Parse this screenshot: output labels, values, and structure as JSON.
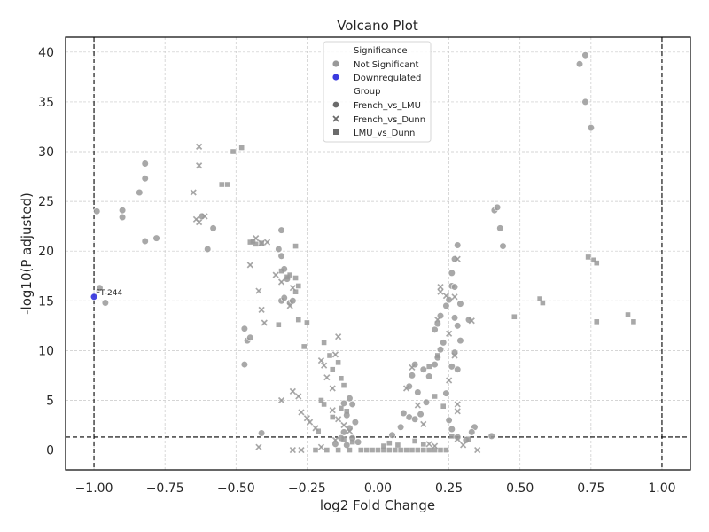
{
  "chart_data": {
    "type": "scatter",
    "title": "Volcano Plot",
    "xlabel": "log2 Fold Change",
    "ylabel": "-log10(P adjusted)",
    "xlim": [
      -1.1,
      1.1
    ],
    "ylim": [
      -2,
      41.5
    ],
    "xticks": [
      -1.0,
      -0.75,
      -0.5,
      -0.25,
      0.0,
      0.25,
      0.5,
      0.75,
      1.0
    ],
    "xtick_labels": [
      "−1.00",
      "−0.75",
      "−0.50",
      "−0.25",
      "0.00",
      "0.25",
      "0.50",
      "0.75",
      "1.00"
    ],
    "yticks": [
      0,
      5,
      10,
      15,
      20,
      25,
      30,
      35,
      40
    ],
    "ytick_labels": [
      "0",
      "5",
      "10",
      "15",
      "20",
      "25",
      "30",
      "35",
      "40"
    ],
    "grid": true,
    "thresholds": {
      "fold_change": [
        -1.0,
        1.0
      ],
      "neg_log10_p": 1.3
    },
    "legend": {
      "placement": "top-center",
      "hue_title": "Significance",
      "hue_entries": [
        {
          "label": "Not Significant",
          "color": "#999999"
        },
        {
          "label": "Downregulated",
          "color": "#3b3bdf"
        }
      ],
      "style_title": "Group",
      "style_entries": [
        {
          "label": "French_vs_LMU",
          "marker": "circle"
        },
        {
          "label": "French_vs_Dunn",
          "marker": "x"
        },
        {
          "label": "LMU_vs_Dunn",
          "marker": "square"
        }
      ]
    },
    "annotations": [
      {
        "text": "FT-244",
        "x": -1.0,
        "y": 15.4
      }
    ],
    "colors": {
      "not_significant": "#999999",
      "downregulated": "#3b3bdf",
      "legend_marker": "#6b6b6b"
    },
    "series": [
      {
        "name": "French_vs_LMU",
        "marker": "circle",
        "points": [
          [
            -0.99,
            24.0
          ],
          [
            -0.98,
            16.3
          ],
          [
            -0.96,
            14.8
          ],
          [
            -0.9,
            24.1
          ],
          [
            -0.9,
            23.4
          ],
          [
            -0.84,
            25.9
          ],
          [
            -0.82,
            28.8
          ],
          [
            -0.82,
            27.3
          ],
          [
            -0.82,
            21.0
          ],
          [
            -0.78,
            21.3
          ],
          [
            -0.62,
            23.5
          ],
          [
            -0.6,
            20.2
          ],
          [
            -0.58,
            22.3
          ],
          [
            -0.47,
            12.2
          ],
          [
            -0.46,
            11.0
          ],
          [
            -0.45,
            11.3
          ],
          [
            -0.47,
            8.6
          ],
          [
            -0.41,
            1.7
          ],
          [
            -0.34,
            22.1
          ],
          [
            -0.35,
            20.2
          ],
          [
            -0.34,
            19.5
          ],
          [
            -0.33,
            18.2
          ],
          [
            -0.32,
            17.2
          ],
          [
            -0.34,
            15.0
          ],
          [
            -0.33,
            15.3
          ],
          [
            -0.31,
            14.8
          ],
          [
            -0.3,
            15.0
          ],
          [
            -0.12,
            4.7
          ],
          [
            -0.1,
            5.2
          ],
          [
            -0.09,
            4.6
          ],
          [
            -0.11,
            3.5
          ],
          [
            -0.08,
            2.8
          ],
          [
            -0.1,
            2.2
          ],
          [
            -0.12,
            1.8
          ],
          [
            -0.09,
            1.2
          ],
          [
            -0.07,
            0.8
          ],
          [
            -0.11,
            0.5
          ],
          [
            -0.13,
            1.2
          ],
          [
            -0.15,
            0.6
          ],
          [
            0.05,
            1.5
          ],
          [
            0.08,
            2.3
          ],
          [
            0.09,
            3.7
          ],
          [
            0.11,
            3.3
          ],
          [
            0.13,
            3.1
          ],
          [
            0.15,
            3.6
          ],
          [
            0.17,
            4.8
          ],
          [
            0.14,
            5.8
          ],
          [
            0.11,
            6.4
          ],
          [
            0.12,
            7.5
          ],
          [
            0.13,
            8.6
          ],
          [
            0.16,
            8.1
          ],
          [
            0.18,
            7.4
          ],
          [
            0.2,
            8.6
          ],
          [
            0.21,
            9.3
          ],
          [
            0.22,
            10.1
          ],
          [
            0.23,
            10.8
          ],
          [
            0.2,
            12.1
          ],
          [
            0.21,
            12.7
          ],
          [
            0.22,
            13.5
          ],
          [
            0.24,
            14.5
          ],
          [
            0.25,
            15.1
          ],
          [
            0.26,
            16.5
          ],
          [
            0.27,
            16.4
          ],
          [
            0.26,
            17.8
          ],
          [
            0.27,
            19.2
          ],
          [
            0.28,
            20.6
          ],
          [
            0.29,
            14.7
          ],
          [
            0.27,
            13.3
          ],
          [
            0.28,
            12.5
          ],
          [
            0.29,
            11.0
          ],
          [
            0.27,
            9.8
          ],
          [
            0.26,
            8.4
          ],
          [
            0.28,
            8.1
          ],
          [
            0.24,
            5.7
          ],
          [
            0.25,
            3.0
          ],
          [
            0.26,
            2.1
          ],
          [
            0.28,
            1.3
          ],
          [
            0.32,
            13.1
          ],
          [
            0.34,
            2.3
          ],
          [
            0.33,
            1.8
          ],
          [
            0.31,
            1.0
          ],
          [
            0.4,
            1.4
          ],
          [
            0.41,
            24.1
          ],
          [
            0.42,
            24.4
          ],
          [
            0.43,
            22.3
          ],
          [
            0.44,
            20.5
          ],
          [
            0.71,
            38.8
          ],
          [
            0.73,
            39.7
          ],
          [
            0.73,
            35.0
          ],
          [
            0.75,
            32.4
          ]
        ]
      },
      {
        "name": "French_vs_Dunn",
        "marker": "x",
        "points": [
          [
            -0.63,
            30.5
          ],
          [
            -0.63,
            28.6
          ],
          [
            -0.64,
            23.2
          ],
          [
            -0.65,
            25.9
          ],
          [
            -0.63,
            22.9
          ],
          [
            -0.61,
            23.5
          ],
          [
            -0.45,
            18.6
          ],
          [
            -0.43,
            21.3
          ],
          [
            -0.41,
            20.8
          ],
          [
            -0.39,
            20.9
          ],
          [
            -0.42,
            16.0
          ],
          [
            -0.41,
            14.1
          ],
          [
            -0.4,
            12.8
          ],
          [
            -0.36,
            17.6
          ],
          [
            -0.34,
            16.9
          ],
          [
            -0.31,
            14.5
          ],
          [
            -0.3,
            16.3
          ],
          [
            -0.34,
            5.0
          ],
          [
            -0.3,
            5.9
          ],
          [
            -0.28,
            5.4
          ],
          [
            -0.25,
            3.2
          ],
          [
            -0.24,
            2.8
          ],
          [
            -0.22,
            2.2
          ],
          [
            -0.27,
            3.8
          ],
          [
            -0.2,
            9.0
          ],
          [
            -0.19,
            8.5
          ],
          [
            -0.18,
            7.3
          ],
          [
            -0.16,
            6.2
          ],
          [
            -0.15,
            9.6
          ],
          [
            -0.14,
            11.4
          ],
          [
            -0.16,
            4.0
          ],
          [
            -0.14,
            3.1
          ],
          [
            -0.12,
            2.5
          ],
          [
            -0.1,
            1.9
          ],
          [
            -0.15,
            1.0
          ],
          [
            -0.2,
            0.3
          ],
          [
            -0.27,
            0.0
          ],
          [
            -0.3,
            0.0
          ],
          [
            -0.42,
            0.3
          ],
          [
            0.1,
            6.2
          ],
          [
            0.12,
            8.3
          ],
          [
            0.14,
            4.5
          ],
          [
            0.16,
            2.6
          ],
          [
            0.18,
            0.6
          ],
          [
            0.2,
            0.4
          ],
          [
            0.22,
            16.4
          ],
          [
            0.22,
            15.9
          ],
          [
            0.24,
            15.5
          ],
          [
            0.21,
            13.1
          ],
          [
            0.25,
            11.7
          ],
          [
            0.27,
            15.4
          ],
          [
            0.28,
            19.2
          ],
          [
            0.33,
            13.0
          ],
          [
            0.27,
            9.5
          ],
          [
            0.28,
            4.6
          ],
          [
            0.28,
            3.9
          ],
          [
            0.28,
            1.1
          ],
          [
            0.3,
            0.5
          ],
          [
            0.35,
            0.0
          ],
          [
            0.25,
            7.0
          ]
        ]
      },
      {
        "name": "LMU_vs_Dunn",
        "marker": "square",
        "points": [
          [
            -0.51,
            30.0
          ],
          [
            -0.48,
            30.4
          ],
          [
            -0.53,
            26.7
          ],
          [
            -0.55,
            26.7
          ],
          [
            -0.45,
            20.9
          ],
          [
            -0.44,
            21.0
          ],
          [
            -0.43,
            20.7
          ],
          [
            -0.41,
            20.8
          ],
          [
            -0.34,
            18.0
          ],
          [
            -0.32,
            17.4
          ],
          [
            -0.31,
            17.6
          ],
          [
            -0.29,
            17.3
          ],
          [
            -0.29,
            20.5
          ],
          [
            -0.28,
            16.5
          ],
          [
            -0.29,
            15.9
          ],
          [
            -0.35,
            12.6
          ],
          [
            -0.28,
            13.1
          ],
          [
            -0.25,
            12.8
          ],
          [
            -0.26,
            10.4
          ],
          [
            -0.19,
            10.8
          ],
          [
            -0.17,
            9.5
          ],
          [
            -0.16,
            8.1
          ],
          [
            -0.14,
            8.8
          ],
          [
            -0.13,
            7.2
          ],
          [
            -0.12,
            6.5
          ],
          [
            -0.2,
            5.0
          ],
          [
            -0.19,
            4.6
          ],
          [
            -0.13,
            4.2
          ],
          [
            -0.16,
            3.3
          ],
          [
            -0.11,
            3.9
          ],
          [
            -0.21,
            1.9
          ],
          [
            -0.12,
            1.1
          ],
          [
            -0.09,
            0.8
          ],
          [
            0.02,
            0.4
          ],
          [
            0.04,
            0.7
          ],
          [
            0.07,
            0.5
          ],
          [
            0.13,
            0.9
          ],
          [
            0.16,
            0.6
          ],
          [
            0.18,
            8.4
          ],
          [
            0.21,
            9.5
          ],
          [
            0.2,
            5.4
          ],
          [
            0.23,
            4.4
          ],
          [
            0.26,
            1.4
          ],
          [
            0.32,
            1.1
          ],
          [
            0.48,
            13.4
          ],
          [
            0.57,
            15.2
          ],
          [
            0.58,
            14.8
          ],
          [
            0.74,
            19.4
          ],
          [
            0.76,
            19.1
          ],
          [
            0.77,
            18.8
          ],
          [
            0.77,
            12.9
          ],
          [
            0.88,
            13.6
          ],
          [
            0.9,
            12.9
          ],
          [
            -0.22,
            0.0
          ],
          [
            -0.18,
            0.0
          ],
          [
            -0.14,
            0.0
          ],
          [
            -0.1,
            0.0
          ],
          [
            -0.06,
            0.0
          ],
          [
            -0.04,
            0.0
          ],
          [
            -0.02,
            0.0
          ],
          [
            0.0,
            0.0
          ],
          [
            0.02,
            0.0
          ],
          [
            0.04,
            0.0
          ],
          [
            0.06,
            0.0
          ],
          [
            0.08,
            0.0
          ],
          [
            0.1,
            0.0
          ],
          [
            0.12,
            0.0
          ],
          [
            0.14,
            0.0
          ],
          [
            0.16,
            0.0
          ],
          [
            0.18,
            0.0
          ],
          [
            0.2,
            0.0
          ],
          [
            0.22,
            0.0
          ],
          [
            0.24,
            0.0
          ]
        ]
      },
      {
        "name": "Downregulated",
        "marker": "circle",
        "points": [
          [
            -1.0,
            15.4
          ]
        ]
      }
    ]
  }
}
